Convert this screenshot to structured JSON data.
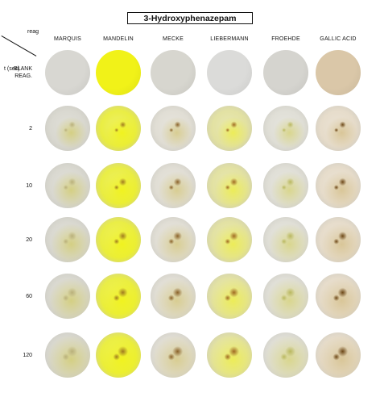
{
  "title": "3-Hydroxyphenazepam",
  "corner": {
    "reag_label": "reag",
    "time_label": "t (sec)"
  },
  "columns": [
    {
      "label": "MARQUIS",
      "base": "#d6d5cc",
      "fleck": "#b9b07a",
      "tint": "#d4cf83"
    },
    {
      "label": "MANDELIN",
      "base": "#e8ec33",
      "fleck": "#a07a1f",
      "tint": "#f0f21f"
    },
    {
      "label": "MECKE",
      "base": "#dedbd1",
      "fleck": "#8a6229",
      "tint": "#d8cd92"
    },
    {
      "label": "LIEBERMANN",
      "base": "#e0df9a",
      "fleck": "#a06a22",
      "tint": "#ecec58"
    },
    {
      "label": "FROEHDE",
      "base": "#dddcd3",
      "fleck": "#b9b85f",
      "tint": "#d9d68e"
    },
    {
      "label": "GALLIC ACID",
      "base": "#e4d9c6",
      "fleck": "#6c4616",
      "tint": "#d9c698"
    }
  ],
  "rows": [
    {
      "label": "BLANK\nREAG.",
      "intensity": 0
    },
    {
      "label": "2",
      "intensity": 0.35
    },
    {
      "label": "10",
      "intensity": 0.55
    },
    {
      "label": "20",
      "intensity": 0.7
    },
    {
      "label": "60",
      "intensity": 0.85
    },
    {
      "label": "120",
      "intensity": 1.0
    }
  ],
  "blank_colors": [
    "#d8d7d2",
    "#f1f218",
    "#d7d6cf",
    "#dbdbd9",
    "#d5d4cf",
    "#dac7a8"
  ]
}
